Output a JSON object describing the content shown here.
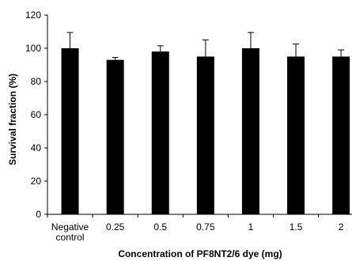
{
  "chart_data": {
    "type": "bar",
    "title": "",
    "xlabel": "Concentration of PF8NT2/6 dye (mg)",
    "ylabel": "Survival fraction (%)",
    "categories": [
      [
        "Negative",
        "control"
      ],
      [
        "0.25"
      ],
      [
        "0.5"
      ],
      [
        "0.75"
      ],
      [
        "1"
      ],
      [
        "1.5"
      ],
      [
        "2"
      ]
    ],
    "series": [
      {
        "values": [
          100,
          93,
          98,
          95,
          100,
          95,
          95
        ],
        "error": [
          9.5,
          1.5,
          3.5,
          10,
          9.5,
          7.5,
          4
        ]
      }
    ],
    "yticks": [
      "0",
      "20",
      "40",
      "60",
      "80",
      "100",
      "120"
    ],
    "ylim": [
      0,
      120
    ],
    "grid": false,
    "legend": "none",
    "colors": {
      "bar": "#000000",
      "axis": "#000000"
    }
  }
}
